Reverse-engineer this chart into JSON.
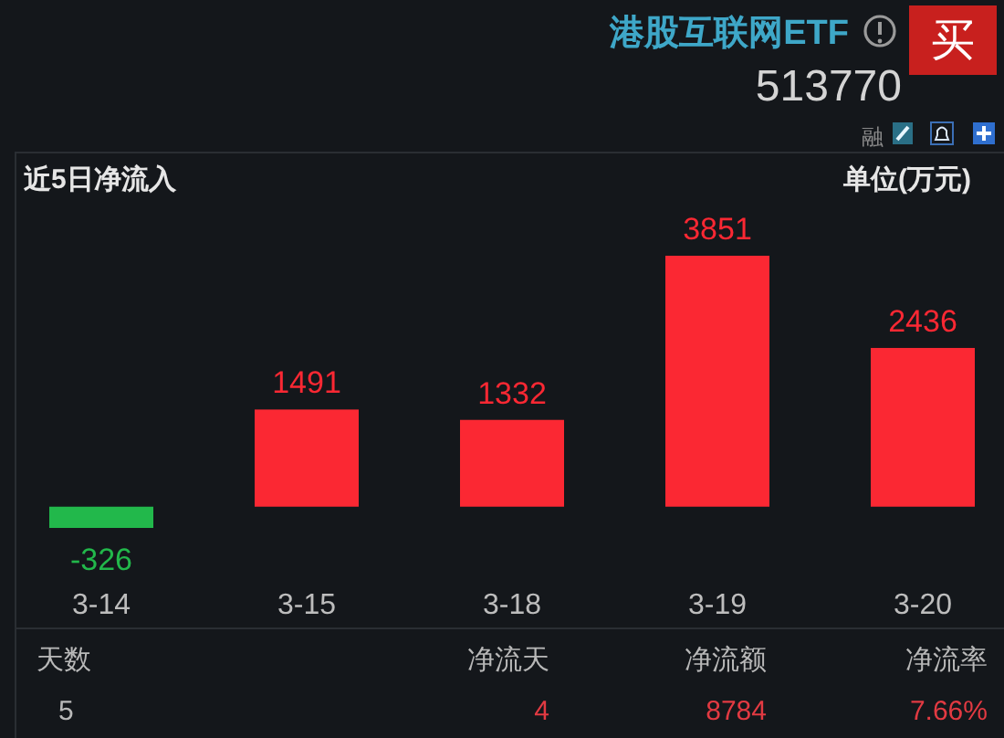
{
  "chart_data": {
    "type": "bar",
    "title": "近5日净流入",
    "ylabel": "单位(万元)",
    "categories": [
      "3-14",
      "3-15",
      "3-18",
      "3-19",
      "3-20"
    ],
    "values": [
      -326,
      1491,
      1332,
      3851,
      2436
    ],
    "colors": [
      "#22b84b",
      "#fb2833",
      "#fb2833",
      "#fb2833",
      "#fb2833"
    ],
    "data_labels": true,
    "annotations": [
      "港股互联网ETF",
      "513770",
      "买",
      "融",
      "天数",
      "5",
      "净流天",
      "4",
      "净流额",
      "8784",
      "净流率",
      "7.66%"
    ]
  }
}
